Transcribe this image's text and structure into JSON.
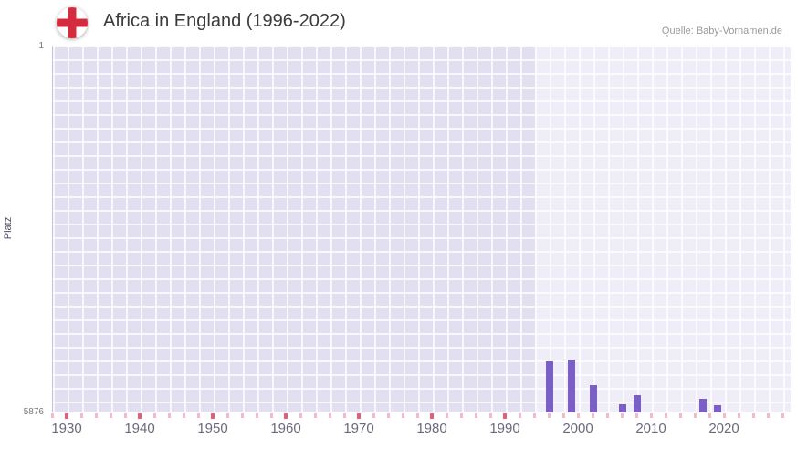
{
  "header": {
    "title": "Africa in England (1996-2022)",
    "source": "Quelle: Baby-Vornamen.de",
    "flag_icon": "england-flag-icon"
  },
  "chart_data": {
    "type": "bar",
    "title": "Africa in England (1996-2022)",
    "xlabel": "",
    "ylabel": "Platz",
    "legend": false,
    "grid": true,
    "y_axis": {
      "min": 1,
      "max": 5876,
      "inverted": true,
      "top_label": "1",
      "bottom_label": "5876"
    },
    "x_axis": {
      "min": 1928,
      "max": 2029,
      "ticks": [
        "1930",
        "1940",
        "1950",
        "1960",
        "1970",
        "1980",
        "1990",
        "2000",
        "2010",
        "2020"
      ]
    },
    "highlight_band": {
      "from": 1994,
      "to": 2029
    },
    "series": [
      {
        "name": "Platz",
        "color": "#7b5fc6",
        "points": [
          {
            "year": 1996,
            "rank": 5050
          },
          {
            "year": 1999,
            "rank": 5030
          },
          {
            "year": 2002,
            "rank": 5440
          },
          {
            "year": 2006,
            "rank": 5740
          },
          {
            "year": 2008,
            "rank": 5600
          },
          {
            "year": 2017,
            "rank": 5660
          },
          {
            "year": 2019,
            "rank": 5760
          }
        ]
      }
    ],
    "minor_tick_marks": {
      "start": 1928,
      "end": 2028,
      "step": 2,
      "decade_step": 10,
      "light_color": "#f5bac9",
      "dark_color": "#e2607e"
    },
    "colors": {
      "plot_background": "#e2dff0",
      "grid_line": "#ffffff",
      "band": "rgba(255,255,255,0.45)",
      "bar": "#7b5fc6"
    }
  }
}
